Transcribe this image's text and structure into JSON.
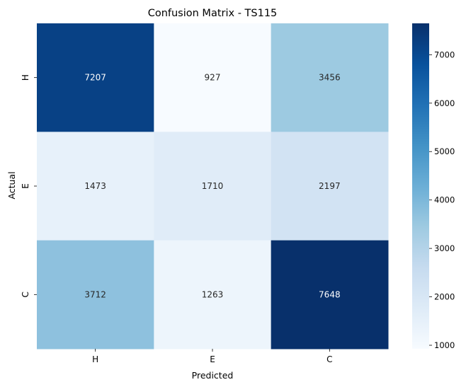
{
  "chart_data": {
    "type": "heatmap",
    "title": "Confusion Matrix - TS115",
    "xlabel": "Predicted",
    "ylabel": "Actual",
    "x_categories": [
      "H",
      "E",
      "C"
    ],
    "y_categories": [
      "H",
      "E",
      "C"
    ],
    "values": [
      [
        7207,
        927,
        3456
      ],
      [
        1473,
        1710,
        2197
      ],
      [
        3712,
        1263,
        7648
      ]
    ],
    "colormap": "Blues",
    "colorbar": {
      "vmin": 927,
      "vmax": 7648,
      "ticks": [
        1000,
        2000,
        3000,
        4000,
        5000,
        6000,
        7000
      ]
    }
  }
}
